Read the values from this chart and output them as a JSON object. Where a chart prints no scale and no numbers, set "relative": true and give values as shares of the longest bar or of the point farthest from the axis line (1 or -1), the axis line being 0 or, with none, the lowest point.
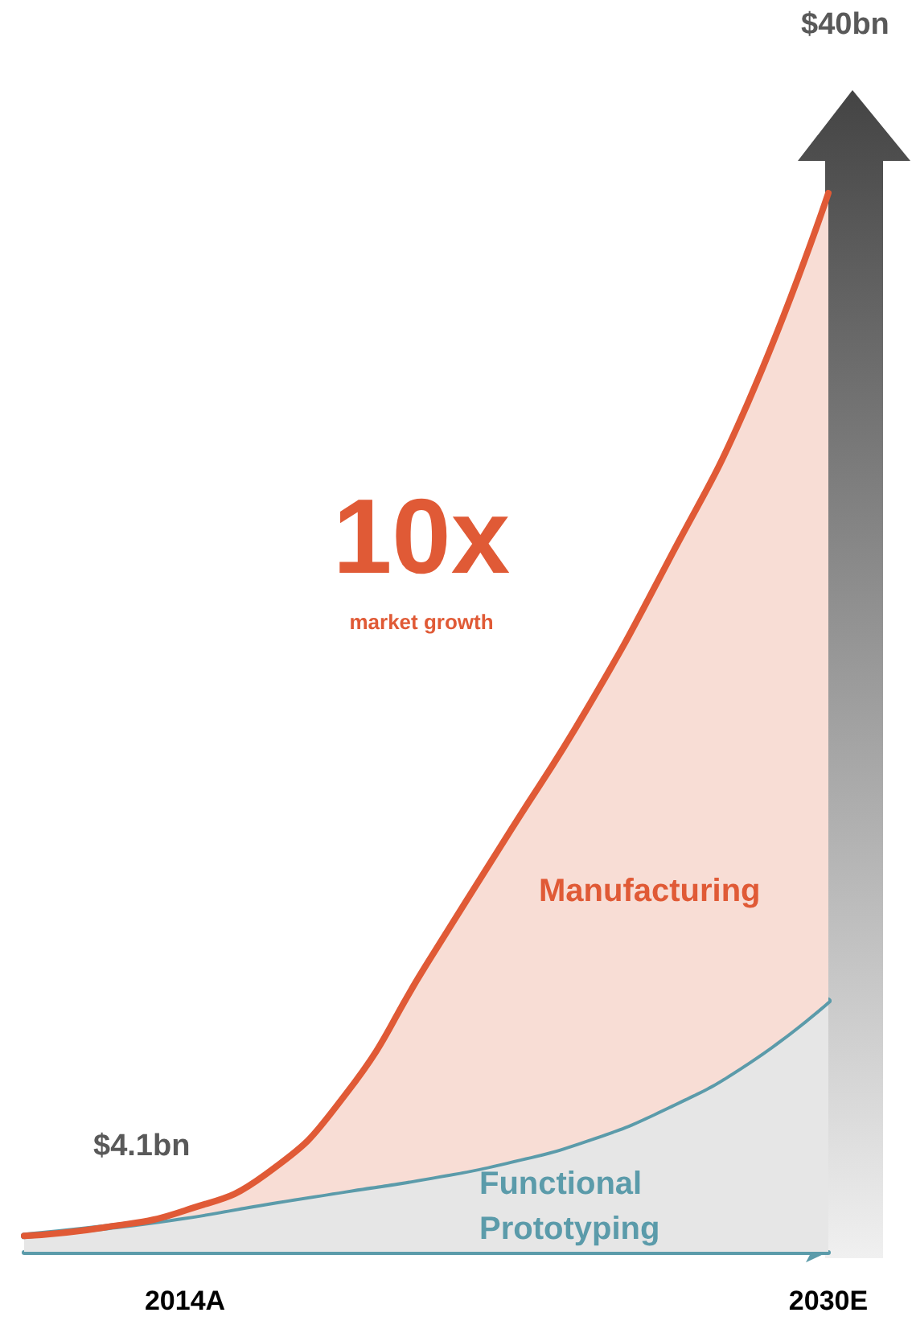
{
  "chart_data": {
    "type": "area",
    "relative": true,
    "stacked": true,
    "categories": [
      null,
      null,
      "2014A",
      null,
      null,
      null,
      null,
      null,
      null,
      null,
      "2030E"
    ],
    "series": [
      {
        "name": "Functional Prototyping",
        "color": "#5b9baa",
        "values": [
          0.015,
          0.023,
          0.033,
          0.046,
          0.058,
          0.07,
          0.085,
          0.106,
          0.137,
          0.179,
          0.237
        ]
      },
      {
        "name": "Manufacturing",
        "color": "#e05a36",
        "values": [
          0,
          0,
          0.006,
          0.027,
          0.091,
          0.201,
          0.307,
          0.407,
          0.514,
          0.623,
          0.763
        ]
      }
    ],
    "annotations": [
      "$4.1bn",
      "$40bn",
      "10x",
      "market growth"
    ]
  }
}
